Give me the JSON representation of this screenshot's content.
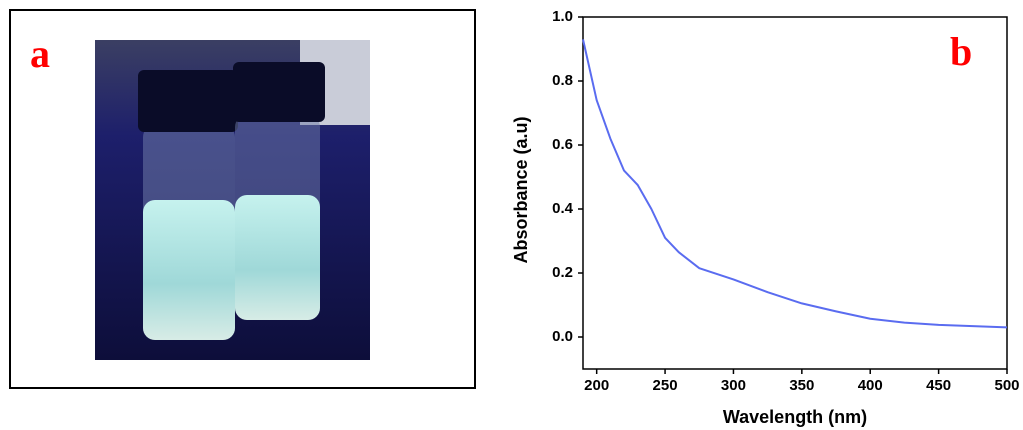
{
  "panel_labels": [
    "a",
    "b"
  ],
  "chart_data": {
    "type": "line",
    "x_label": "Wavelength (nm)",
    "y_label": "Absorbance (a.u)",
    "x": [
      190,
      200,
      210,
      220,
      230,
      240,
      250,
      260,
      275,
      300,
      325,
      350,
      375,
      400,
      425,
      450,
      475,
      500
    ],
    "values": [
      0.93,
      0.74,
      0.62,
      0.52,
      0.475,
      0.4,
      0.31,
      0.265,
      0.215,
      0.18,
      0.14,
      0.105,
      0.08,
      0.057,
      0.045,
      0.038,
      0.034,
      0.03
    ],
    "color": "#5a6cf0",
    "xlim": [
      190,
      500
    ],
    "xticks": [
      200,
      250,
      300,
      350,
      400,
      450,
      500
    ],
    "ylim": [
      -0.1,
      1.0
    ],
    "yticks": [
      {
        "value": 0,
        "label": "0.0"
      },
      0.2,
      0.4,
      0.6,
      0.8,
      {
        "value": 1,
        "label": "1.0"
      }
    ],
    "grid": false
  }
}
